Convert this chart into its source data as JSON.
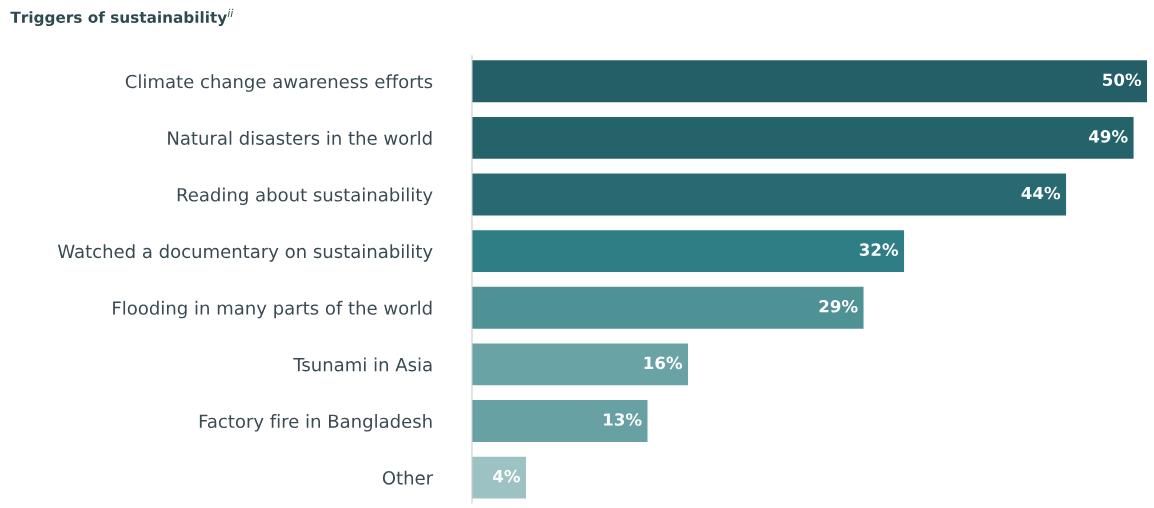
{
  "chart_data": {
    "type": "bar",
    "orientation": "horizontal",
    "title": "Triggers of sustainability$^{ii}$",
    "categories": [
      "Climate change awareness efforts",
      "Natural disasters in the world",
      "Reading about sustainability",
      "Watched a documentary on sustainability",
      "Flooding in many parts of the world",
      "Tsunami in Asia",
      "Factory fire in Bangladesh",
      "Other"
    ],
    "values": [
      50,
      49,
      44,
      32,
      29,
      16,
      13,
      4
    ],
    "value_labels": [
      "50%",
      "49%",
      "44%",
      "32%",
      "29%",
      "16%",
      "13%",
      "4%"
    ],
    "colors": [
      "#245f67",
      "#25636b",
      "#296a72",
      "#2f7d85",
      "#4f9296",
      "#6aa3a6",
      "#68a1a4",
      "#9dc2c3"
    ],
    "grid": false,
    "legend": false
  }
}
